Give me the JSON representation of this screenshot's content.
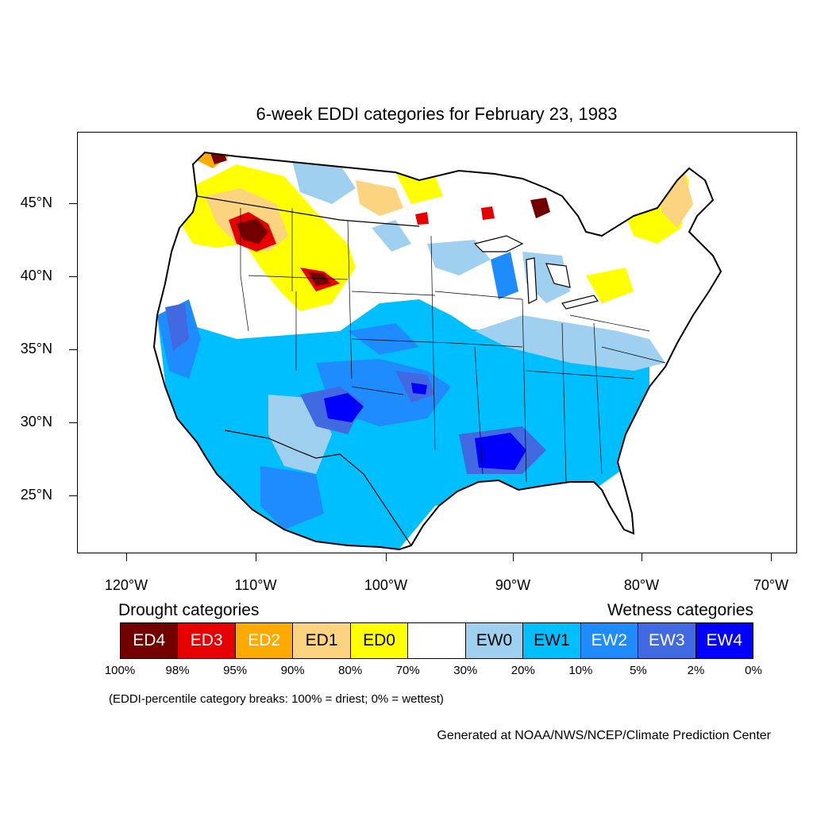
{
  "title": "6-week EDDI categories for February 23, 1983",
  "map": {
    "region": "Contiguous United States",
    "latitude_labels": [
      "45°N",
      "40°N",
      "35°N",
      "30°N",
      "25°N"
    ],
    "longitude_labels": [
      "120°W",
      "110°W",
      "100°W",
      "90°W",
      "80°W",
      "70°W"
    ]
  },
  "legend": {
    "drought_heading": "Drought categories",
    "wetness_heading": "Wetness categories",
    "categories": [
      {
        "label": "ED4",
        "color": "#730000",
        "text_color": "#ffffff"
      },
      {
        "label": "ED3",
        "color": "#e60000",
        "text_color": "#ffffff"
      },
      {
        "label": "ED2",
        "color": "#ffaa00",
        "text_color": "#ffffff"
      },
      {
        "label": "ED1",
        "color": "#fcd37f",
        "text_color": "#000000"
      },
      {
        "label": "ED0",
        "color": "#ffff00",
        "text_color": "#000000"
      },
      {
        "label": "",
        "color": "#ffffff",
        "text_color": "#000000"
      },
      {
        "label": "EW0",
        "color": "#9fd0f0",
        "text_color": "#000000"
      },
      {
        "label": "EW1",
        "color": "#00bfff",
        "text_color": "#000000"
      },
      {
        "label": "EW2",
        "color": "#1e8cff",
        "text_color": "#ffffff"
      },
      {
        "label": "EW3",
        "color": "#4169e1",
        "text_color": "#ffffff"
      },
      {
        "label": "EW4",
        "color": "#0000ff",
        "text_color": "#ffffff"
      }
    ],
    "percentiles": [
      "100%",
      "98%",
      "95%",
      "90%",
      "80%",
      "70%",
      "30%",
      "20%",
      "10%",
      "5%",
      "2%",
      "0%"
    ],
    "note": "(EDDI-percentile category breaks: 100% = driest; 0% = wettest)"
  },
  "credit": "Generated at NOAA/NWS/NCEP/Climate Prediction Center"
}
